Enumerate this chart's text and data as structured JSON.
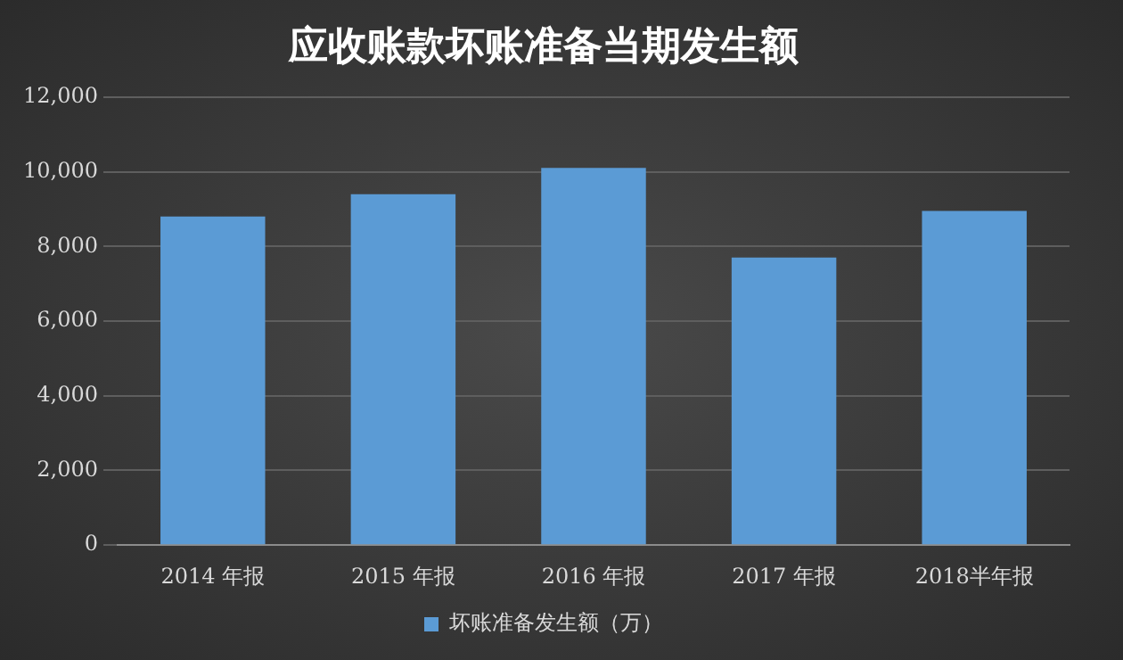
{
  "chart_data": {
    "type": "bar",
    "title": "应收账款坏账准备当期发生额",
    "categories": [
      "2014 年报",
      "2015 年报",
      "2016 年报",
      "2017 年报",
      "2018半年报"
    ],
    "series": [
      {
        "name": "坏账准备发生额（万）",
        "color": "#5b9bd5",
        "values": [
          8800,
          9400,
          10100,
          7700,
          8950
        ]
      }
    ],
    "ylim": [
      0,
      12000
    ],
    "yticks": [
      {
        "value": 0,
        "label": "0"
      },
      {
        "value": 2000,
        "label": "2,000"
      },
      {
        "value": 4000,
        "label": "4,000"
      },
      {
        "value": 6000,
        "label": "6,000"
      },
      {
        "value": 8000,
        "label": "8,000"
      },
      {
        "value": 10000,
        "label": "10,000"
      },
      {
        "value": 12000,
        "label": "12,000"
      }
    ],
    "grid": "y",
    "legend": "bottom"
  }
}
